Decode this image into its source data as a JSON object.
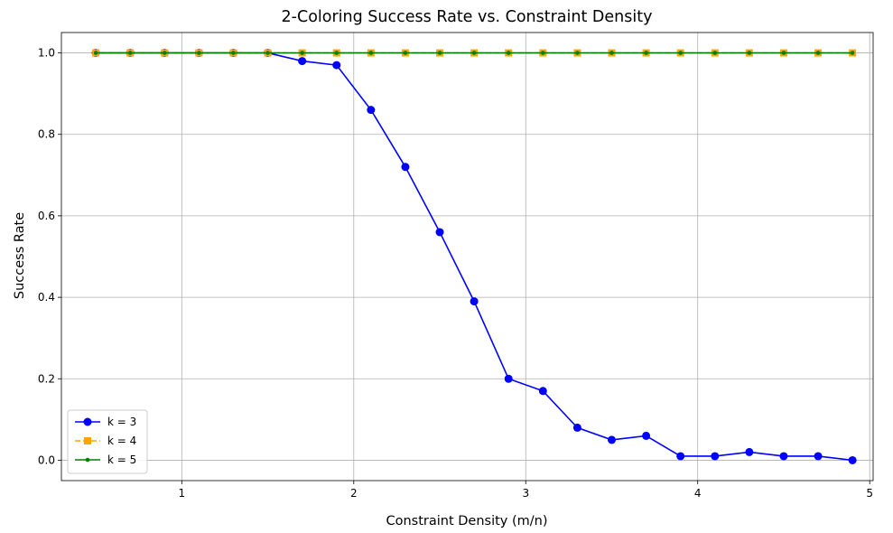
{
  "chart_data": {
    "type": "line",
    "title": "2-Coloring Success Rate vs. Constraint Density",
    "xlabel": "Constraint Density (m/n)",
    "ylabel": "Success Rate",
    "xlim": [
      0.3,
      5.02
    ],
    "ylim": [
      -0.05,
      1.05
    ],
    "xticks": [
      1,
      2,
      3,
      4,
      5
    ],
    "yticks": [
      0.0,
      0.2,
      0.4,
      0.6,
      0.8,
      1.0
    ],
    "grid": true,
    "legend_position": "lower-left",
    "x": [
      0.5,
      0.7,
      0.9,
      1.1,
      1.3,
      1.5,
      1.7,
      1.9,
      2.1,
      2.3,
      2.5,
      2.7,
      2.9,
      3.1,
      3.3,
      3.5,
      3.7,
      3.9,
      4.1,
      4.3,
      4.5,
      4.7,
      4.9
    ],
    "series": [
      {
        "name": "k = 3",
        "color": "#0000ff",
        "marker": "circle",
        "line_style": "solid",
        "values": [
          1.0,
          1.0,
          1.0,
          1.0,
          1.0,
          1.0,
          0.98,
          0.97,
          0.86,
          0.72,
          0.56,
          0.39,
          0.2,
          0.17,
          0.08,
          0.05,
          0.06,
          0.01,
          0.01,
          0.02,
          0.01,
          0.01,
          0.0
        ]
      },
      {
        "name": "k = 4",
        "color": "#ffa500",
        "marker": "square",
        "line_style": "dashed",
        "values": [
          1.0,
          1.0,
          1.0,
          1.0,
          1.0,
          1.0,
          1.0,
          1.0,
          1.0,
          1.0,
          1.0,
          1.0,
          1.0,
          1.0,
          1.0,
          1.0,
          1.0,
          1.0,
          1.0,
          1.0,
          1.0,
          1.0,
          1.0
        ]
      },
      {
        "name": "k = 5",
        "color": "#008000",
        "marker": "dot",
        "line_style": "solid",
        "values": [
          1.0,
          1.0,
          1.0,
          1.0,
          1.0,
          1.0,
          1.0,
          1.0,
          1.0,
          1.0,
          1.0,
          1.0,
          1.0,
          1.0,
          1.0,
          1.0,
          1.0,
          1.0,
          1.0,
          1.0,
          1.0,
          1.0,
          1.0
        ]
      }
    ]
  }
}
